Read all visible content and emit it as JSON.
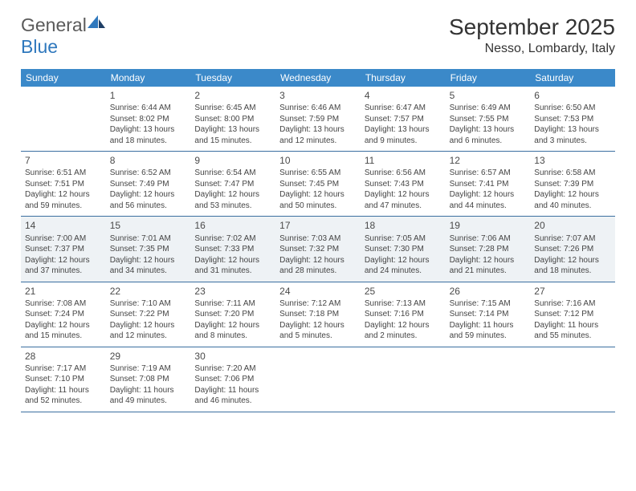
{
  "logo": {
    "word1": "General",
    "word2": "Blue"
  },
  "title": "September 2025",
  "location": "Nesso, Lombardy, Italy",
  "colors": {
    "header_bg": "#3b89c9",
    "header_text": "#ffffff",
    "row_border": "#3b6fa0",
    "shaded_bg": "#eef2f5",
    "body_text": "#444444",
    "logo_gray": "#5a5a5a",
    "logo_blue": "#2f78bd"
  },
  "weekdays": [
    "Sunday",
    "Monday",
    "Tuesday",
    "Wednesday",
    "Thursday",
    "Friday",
    "Saturday"
  ],
  "weeks": [
    {
      "shaded": false,
      "days": [
        null,
        {
          "n": "1",
          "sunrise": "6:44 AM",
          "sunset": "8:02 PM",
          "daylight": "13 hours and 18 minutes."
        },
        {
          "n": "2",
          "sunrise": "6:45 AM",
          "sunset": "8:00 PM",
          "daylight": "13 hours and 15 minutes."
        },
        {
          "n": "3",
          "sunrise": "6:46 AM",
          "sunset": "7:59 PM",
          "daylight": "13 hours and 12 minutes."
        },
        {
          "n": "4",
          "sunrise": "6:47 AM",
          "sunset": "7:57 PM",
          "daylight": "13 hours and 9 minutes."
        },
        {
          "n": "5",
          "sunrise": "6:49 AM",
          "sunset": "7:55 PM",
          "daylight": "13 hours and 6 minutes."
        },
        {
          "n": "6",
          "sunrise": "6:50 AM",
          "sunset": "7:53 PM",
          "daylight": "13 hours and 3 minutes."
        }
      ]
    },
    {
      "shaded": false,
      "days": [
        {
          "n": "7",
          "sunrise": "6:51 AM",
          "sunset": "7:51 PM",
          "daylight": "12 hours and 59 minutes."
        },
        {
          "n": "8",
          "sunrise": "6:52 AM",
          "sunset": "7:49 PM",
          "daylight": "12 hours and 56 minutes."
        },
        {
          "n": "9",
          "sunrise": "6:54 AM",
          "sunset": "7:47 PM",
          "daylight": "12 hours and 53 minutes."
        },
        {
          "n": "10",
          "sunrise": "6:55 AM",
          "sunset": "7:45 PM",
          "daylight": "12 hours and 50 minutes."
        },
        {
          "n": "11",
          "sunrise": "6:56 AM",
          "sunset": "7:43 PM",
          "daylight": "12 hours and 47 minutes."
        },
        {
          "n": "12",
          "sunrise": "6:57 AM",
          "sunset": "7:41 PM",
          "daylight": "12 hours and 44 minutes."
        },
        {
          "n": "13",
          "sunrise": "6:58 AM",
          "sunset": "7:39 PM",
          "daylight": "12 hours and 40 minutes."
        }
      ]
    },
    {
      "shaded": true,
      "days": [
        {
          "n": "14",
          "sunrise": "7:00 AM",
          "sunset": "7:37 PM",
          "daylight": "12 hours and 37 minutes."
        },
        {
          "n": "15",
          "sunrise": "7:01 AM",
          "sunset": "7:35 PM",
          "daylight": "12 hours and 34 minutes."
        },
        {
          "n": "16",
          "sunrise": "7:02 AM",
          "sunset": "7:33 PM",
          "daylight": "12 hours and 31 minutes."
        },
        {
          "n": "17",
          "sunrise": "7:03 AM",
          "sunset": "7:32 PM",
          "daylight": "12 hours and 28 minutes."
        },
        {
          "n": "18",
          "sunrise": "7:05 AM",
          "sunset": "7:30 PM",
          "daylight": "12 hours and 24 minutes."
        },
        {
          "n": "19",
          "sunrise": "7:06 AM",
          "sunset": "7:28 PM",
          "daylight": "12 hours and 21 minutes."
        },
        {
          "n": "20",
          "sunrise": "7:07 AM",
          "sunset": "7:26 PM",
          "daylight": "12 hours and 18 minutes."
        }
      ]
    },
    {
      "shaded": false,
      "days": [
        {
          "n": "21",
          "sunrise": "7:08 AM",
          "sunset": "7:24 PM",
          "daylight": "12 hours and 15 minutes."
        },
        {
          "n": "22",
          "sunrise": "7:10 AM",
          "sunset": "7:22 PM",
          "daylight": "12 hours and 12 minutes."
        },
        {
          "n": "23",
          "sunrise": "7:11 AM",
          "sunset": "7:20 PM",
          "daylight": "12 hours and 8 minutes."
        },
        {
          "n": "24",
          "sunrise": "7:12 AM",
          "sunset": "7:18 PM",
          "daylight": "12 hours and 5 minutes."
        },
        {
          "n": "25",
          "sunrise": "7:13 AM",
          "sunset": "7:16 PM",
          "daylight": "12 hours and 2 minutes."
        },
        {
          "n": "26",
          "sunrise": "7:15 AM",
          "sunset": "7:14 PM",
          "daylight": "11 hours and 59 minutes."
        },
        {
          "n": "27",
          "sunrise": "7:16 AM",
          "sunset": "7:12 PM",
          "daylight": "11 hours and 55 minutes."
        }
      ]
    },
    {
      "shaded": false,
      "days": [
        {
          "n": "28",
          "sunrise": "7:17 AM",
          "sunset": "7:10 PM",
          "daylight": "11 hours and 52 minutes."
        },
        {
          "n": "29",
          "sunrise": "7:19 AM",
          "sunset": "7:08 PM",
          "daylight": "11 hours and 49 minutes."
        },
        {
          "n": "30",
          "sunrise": "7:20 AM",
          "sunset": "7:06 PM",
          "daylight": "11 hours and 46 minutes."
        },
        null,
        null,
        null,
        null
      ]
    }
  ]
}
